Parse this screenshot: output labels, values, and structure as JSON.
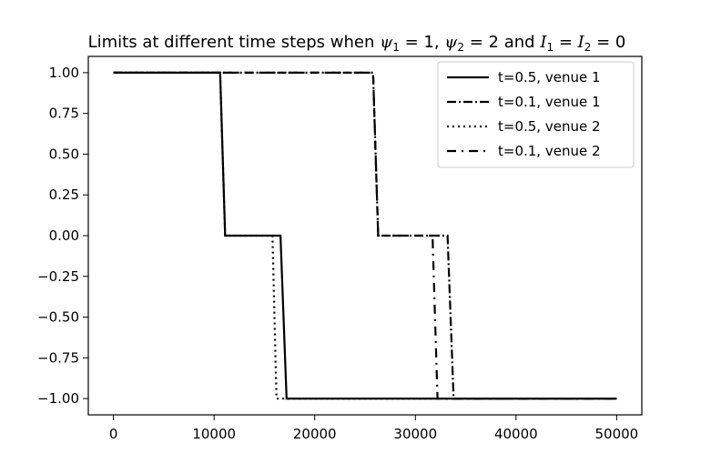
{
  "chart_data": {
    "type": "line",
    "title": {
      "prefix": "Limits at different time steps when ",
      "psi": "ψ",
      "sub1": "1",
      "eq1": " = 1, ",
      "sub2": "2",
      "eq2": " = 2 and ",
      "I": "I",
      "eq3": " = ",
      "eq4": " = 0"
    },
    "xlabel": "",
    "ylabel": "",
    "xlim": [
      -2500,
      52500
    ],
    "ylim": [
      -1.1,
      1.1
    ],
    "xticks": [
      0,
      10000,
      20000,
      30000,
      40000,
      50000
    ],
    "xtick_labels": [
      "0",
      "10000",
      "20000",
      "30000",
      "40000",
      "50000"
    ],
    "yticks": [
      1.0,
      0.75,
      0.5,
      0.25,
      0.0,
      -0.25,
      -0.5,
      -0.75,
      -1.0
    ],
    "ytick_labels": [
      "1.00",
      "0.75",
      "0.50",
      "0.25",
      "0.00",
      "−0.25",
      "−0.50",
      "−0.75",
      "−1.00"
    ],
    "grid": false,
    "legend_position": "top-right",
    "series": [
      {
        "name": "t=0.5, venue 1",
        "style": "solid",
        "x": [
          0,
          10600,
          11100,
          16600,
          17200,
          50000
        ],
        "y": [
          1,
          1,
          0,
          0,
          -1,
          -1
        ]
      },
      {
        "name": "t=0.1, venue 1",
        "style": "dashdot",
        "x": [
          0,
          25800,
          26300,
          33200,
          33800,
          50000
        ],
        "y": [
          1,
          1,
          0,
          0,
          -1,
          -1
        ]
      },
      {
        "name": "t=0.5, venue 2",
        "style": "dotted",
        "x": [
          0,
          10600,
          11100,
          15800,
          16200,
          50000
        ],
        "y": [
          1,
          1,
          0,
          0,
          -1,
          -1
        ]
      },
      {
        "name": "t=0.1, venue 2",
        "style": "dashdot_sparse",
        "x": [
          0,
          25800,
          26300,
          31700,
          32200,
          50000
        ],
        "y": [
          1,
          1,
          0,
          0,
          -1,
          -1
        ]
      }
    ]
  }
}
